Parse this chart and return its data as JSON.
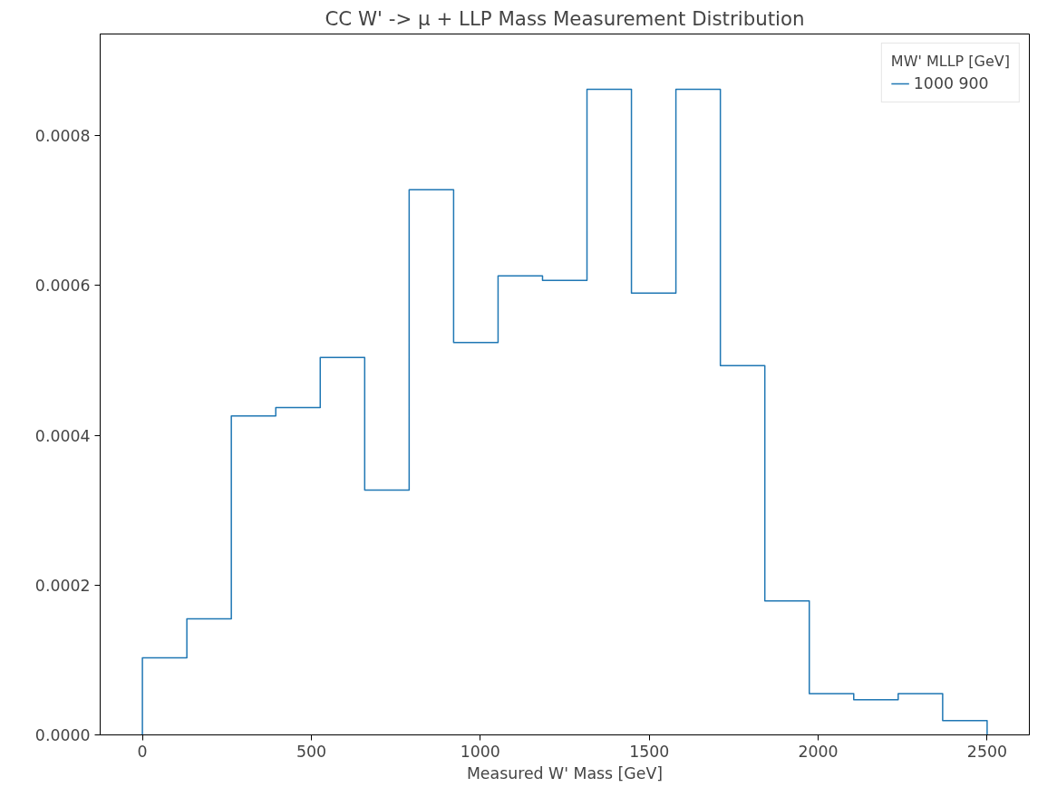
{
  "chart_data": {
    "type": "histogram",
    "title": "CC W' -> μ + LLP Mass Measurement Distribution",
    "xlabel": "Measured W' Mass [GeV]",
    "legend_title": "MW' MLLP [GeV]",
    "bins": [
      0,
      131.58,
      263.16,
      394.74,
      526.32,
      657.89,
      789.47,
      921.05,
      1052.63,
      1184.21,
      1315.79,
      1447.37,
      1578.95,
      1710.53,
      1842.11,
      1973.68,
      2105.26,
      2236.84,
      2368.42,
      2500
    ],
    "series": [
      {
        "name": "1000 900",
        "color": "#1f77b4",
        "values": [
          0.000103,
          0.000155,
          0.000426,
          0.000437,
          0.000504,
          0.000327,
          0.000728,
          0.000524,
          0.000613,
          0.000607,
          0.000862,
          0.00059,
          0.000862,
          0.000493,
          0.000179,
          5.5e-05,
          4.7e-05,
          5.5e-05,
          1.9e-05
        ]
      }
    ],
    "xlim": [
      -125,
      2625
    ],
    "xticks": [
      0,
      500,
      1000,
      1500,
      2000,
      2500
    ],
    "ylim": [
      0,
      0.000936
    ],
    "yticks": [
      {
        "value": 0,
        "label": "0.0000"
      },
      {
        "value": 0.0002,
        "label": "0.0002"
      },
      {
        "value": 0.0004,
        "label": "0.0004"
      },
      {
        "value": 0.0006,
        "label": "0.0006"
      },
      {
        "value": 0.0008,
        "label": "0.0008"
      }
    ],
    "legend": "top right",
    "grid": false
  }
}
